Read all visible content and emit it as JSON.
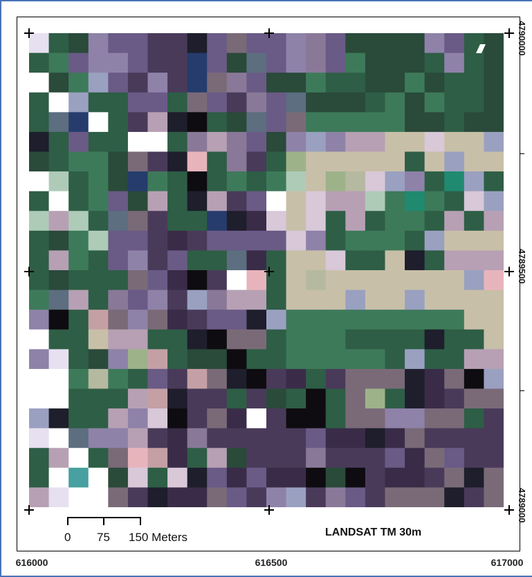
{
  "map": {
    "sensor_label": "LANDSAT TM 30m",
    "x_ticks": [
      "616000",
      "616500",
      "617000"
    ],
    "y_ticks": [
      "4790000",
      "4789500",
      "4789000"
    ],
    "scale_bar": {
      "labels": [
        "0",
        "75",
        "150 Meters"
      ]
    },
    "raster_grid": {
      "cols": 24,
      "rows": 24,
      "palette": {
        "a": "#2e5e46",
        "b": "#6a5a86",
        "c": "#8e82a8",
        "d": "#b7a0b4",
        "e": "#c8bfa8",
        "f": "#b5b9a0",
        "g": "#3d7a5a",
        "h": "#2a4a3a",
        "i": "#1e1e2c",
        "j": "#ffffff",
        "k": "#5c6e80",
        "l": "#7a6a78",
        "m": "#4a3a5a",
        "n": "#9eb28a",
        "o": "#d8c8d8",
        "p": "#263c6c",
        "q": "#9aa0c0",
        "r": "#c4a0a4",
        "s": "#48a0a0",
        "t": "#e6e0f0",
        "u": "#0e0c10",
        "v": "#1f8a70",
        "w": "#e8b4bc",
        "x": "#8a7898",
        "y": "#3a2c48",
        "z": "#aecbb8"
      },
      "rows_data": [
        "tahcbbmmiblbbcxbhhhhcbah",
        "agbccbmmpbhkbcxbghhhacah",
        "jhgqbmcmplxbhhgaahhghaah",
        "ajqaabbalbmxbkhhhaghgaah",
        "akpjamdiuahkblggggghhahh",
        "iabaajjaxdxbhcqcddeeoeeq",
        "hagghlmiwaxmaneeeeeaeqee",
        "jzaghpgauagagzenfoqcavqa",
        "ajagbhdaidmbjeoddzgvgaoq",
        "zdzaklmaapiyoeoadaggadad",
        "ahgzbbmymbbbbocagggaqeee",
        "adgabcmbaakyaeeoaaeiaddd",
        "ahaaalbyumjwaefeeeeeeeqw",
        "gkdaxbcmqxddaeeeqeeqeeee",
        "cuarlclymbbiqgggggggggee",
        "jaaeddaaiullagggaaaaiaae",
        "ctahcnrahhuaagggggaqaadd",
        "jjgfgabmrliumyamllliyluq",
        "jjaaadrimmamhaualnaiymll",
        "qiaadcoumlyjmuuallccllam",
        "tjkccdmyxmmmmmbyyiylmmmm",
        "adjalwryadhmmmxmmmbylbmm",
        "ajsjhoaoibybyyuhumyymlil",
        "dtjjlmiyylbmcqmxbmllliml"
      ]
    }
  }
}
